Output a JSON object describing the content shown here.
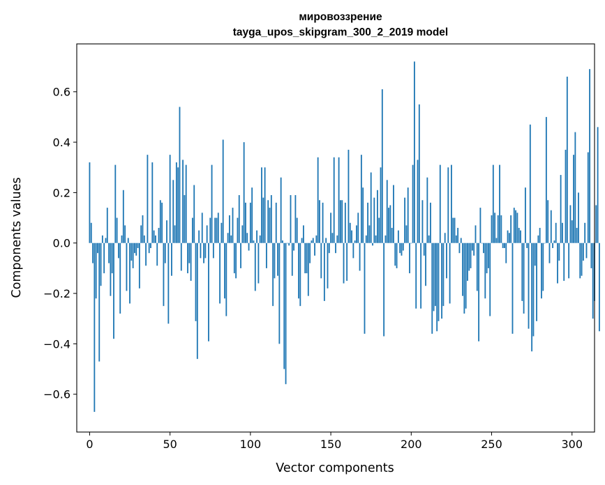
{
  "chart_data": {
    "type": "bar",
    "title": "мировоззрение",
    "subtitle": "tayga_upos_skipgram_300_2_2019 model",
    "xlabel": "Vector components",
    "ylabel": "Components values",
    "xlim": [
      -8,
      314
    ],
    "ylim": [
      -0.75,
      0.79
    ],
    "xticks": [
      0,
      50,
      100,
      150,
      200,
      250,
      300
    ],
    "xtick_labels": [
      "0",
      "50",
      "100",
      "150",
      "200",
      "250",
      "300"
    ],
    "yticks": [
      -0.6,
      -0.4,
      -0.2,
      0.0,
      0.2,
      0.4,
      0.6
    ],
    "ytick_labels": [
      "−0.6",
      "−0.4",
      "−0.2",
      "0.0",
      "0.2",
      "0.4",
      "0.6"
    ],
    "grid": false,
    "bar_color": "#1f77b4",
    "values": [
      0.32,
      0.08,
      -0.08,
      -0.67,
      -0.22,
      -0.04,
      -0.47,
      -0.17,
      0.03,
      -0.12,
      0.02,
      0.14,
      -0.08,
      -0.21,
      -0.12,
      -0.38,
      0.31,
      0.1,
      -0.06,
      -0.28,
      0.03,
      0.21,
      0.07,
      -0.19,
      0.02,
      -0.24,
      -0.07,
      -0.1,
      -0.04,
      -0.05,
      -0.02,
      -0.18,
      0.07,
      0.11,
      0.03,
      -0.09,
      0.35,
      -0.04,
      -0.02,
      0.32,
      0.05,
      0.03,
      -0.09,
      0.06,
      0.17,
      0.16,
      -0.25,
      -0.08,
      0.09,
      -0.32,
      0.35,
      -0.13,
      0.25,
      0.07,
      0.32,
      0.3,
      0.54,
      -0.11,
      0.33,
      0.19,
      0.31,
      -0.12,
      -0.08,
      -0.15,
      0.1,
      0.23,
      -0.31,
      -0.46,
      0.05,
      -0.06,
      0.12,
      -0.08,
      -0.06,
      0.07,
      -0.39,
      0.1,
      0.31,
      -0.06,
      0.1,
      0.1,
      0.12,
      -0.24,
      0.08,
      0.41,
      -0.22,
      -0.29,
      0.04,
      0.11,
      0.03,
      0.14,
      -0.12,
      -0.14,
      0.1,
      0.19,
      -0.1,
      0.07,
      0.4,
      0.16,
      0.04,
      -0.03,
      0.16,
      0.22,
      0.01,
      -0.19,
      0.05,
      -0.16,
      0.03,
      0.3,
      0.18,
      0.3,
      -0.1,
      0.17,
      0.14,
      0.19,
      -0.25,
      -0.14,
      0.16,
      -0.13,
      -0.4,
      0.26,
      0.01,
      -0.5,
      -0.56,
      0.0,
      -0.01,
      0.19,
      -0.13,
      -0.03,
      0.19,
      0.1,
      -0.22,
      -0.25,
      0.02,
      0.07,
      -0.12,
      -0.12,
      -0.21,
      -0.08,
      0.01,
      0.02,
      -0.05,
      0.03,
      0.34,
      0.17,
      -0.14,
      0.16,
      -0.23,
      0.02,
      -0.18,
      -0.04,
      0.12,
      0.04,
      0.34,
      -0.04,
      0.03,
      0.34,
      0.17,
      0.17,
      -0.16,
      0.16,
      -0.15,
      0.37,
      0.08,
      0.05,
      -0.06,
      0.01,
      0.07,
      0.12,
      -0.11,
      0.35,
      0.22,
      -0.36,
      0.03,
      0.16,
      0.07,
      0.28,
      -0.01,
      0.18,
      0.03,
      0.21,
      0.1,
      0.3,
      0.61,
      -0.37,
      0.03,
      0.25,
      0.14,
      0.15,
      0.06,
      0.23,
      -0.09,
      -0.1,
      0.05,
      -0.04,
      -0.05,
      -0.03,
      0.18,
      0.07,
      0.22,
      -0.12,
      0.0,
      0.31,
      0.72,
      -0.26,
      0.33,
      0.55,
      -0.26,
      0.17,
      -0.05,
      -0.17,
      0.26,
      0.03,
      0.16,
      -0.36,
      -0.27,
      -0.25,
      -0.35,
      -0.31,
      0.31,
      -0.3,
      -0.25,
      0.04,
      -0.14,
      0.3,
      -0.24,
      0.31,
      0.1,
      0.1,
      0.03,
      0.06,
      -0.04,
      0.02,
      -0.21,
      -0.28,
      -0.26,
      -0.15,
      -0.11,
      -0.1,
      -0.03,
      -0.05,
      0.07,
      -0.19,
      -0.39,
      0.14,
      0.0,
      -0.04,
      -0.22,
      -0.12,
      -0.1,
      -0.29,
      0.11,
      0.31,
      0.12,
      0.02,
      0.11,
      0.31,
      0.11,
      -0.02,
      -0.02,
      -0.08,
      0.05,
      0.04,
      0.11,
      -0.36,
      0.14,
      0.13,
      0.12,
      0.06,
      0.05,
      -0.23,
      -0.28,
      0.22,
      -0.02,
      -0.34,
      0.47,
      -0.43,
      -0.37,
      -0.09,
      -0.31,
      0.03,
      0.06,
      -0.22,
      -0.19,
      0.0,
      0.5,
      0.17,
      -0.08,
      0.13,
      -0.02,
      0.01,
      0.08,
      -0.16,
      -0.07,
      0.27,
      0.08,
      -0.15,
      0.37,
      0.66,
      -0.14,
      0.15,
      0.09,
      0.35,
      0.44,
      0.06,
      0.2,
      -0.14,
      -0.13,
      -0.07,
      0.08,
      -0.06,
      0.36,
      0.69,
      -0.1,
      -0.3,
      -0.23,
      0.15,
      0.46,
      -0.35
    ]
  }
}
